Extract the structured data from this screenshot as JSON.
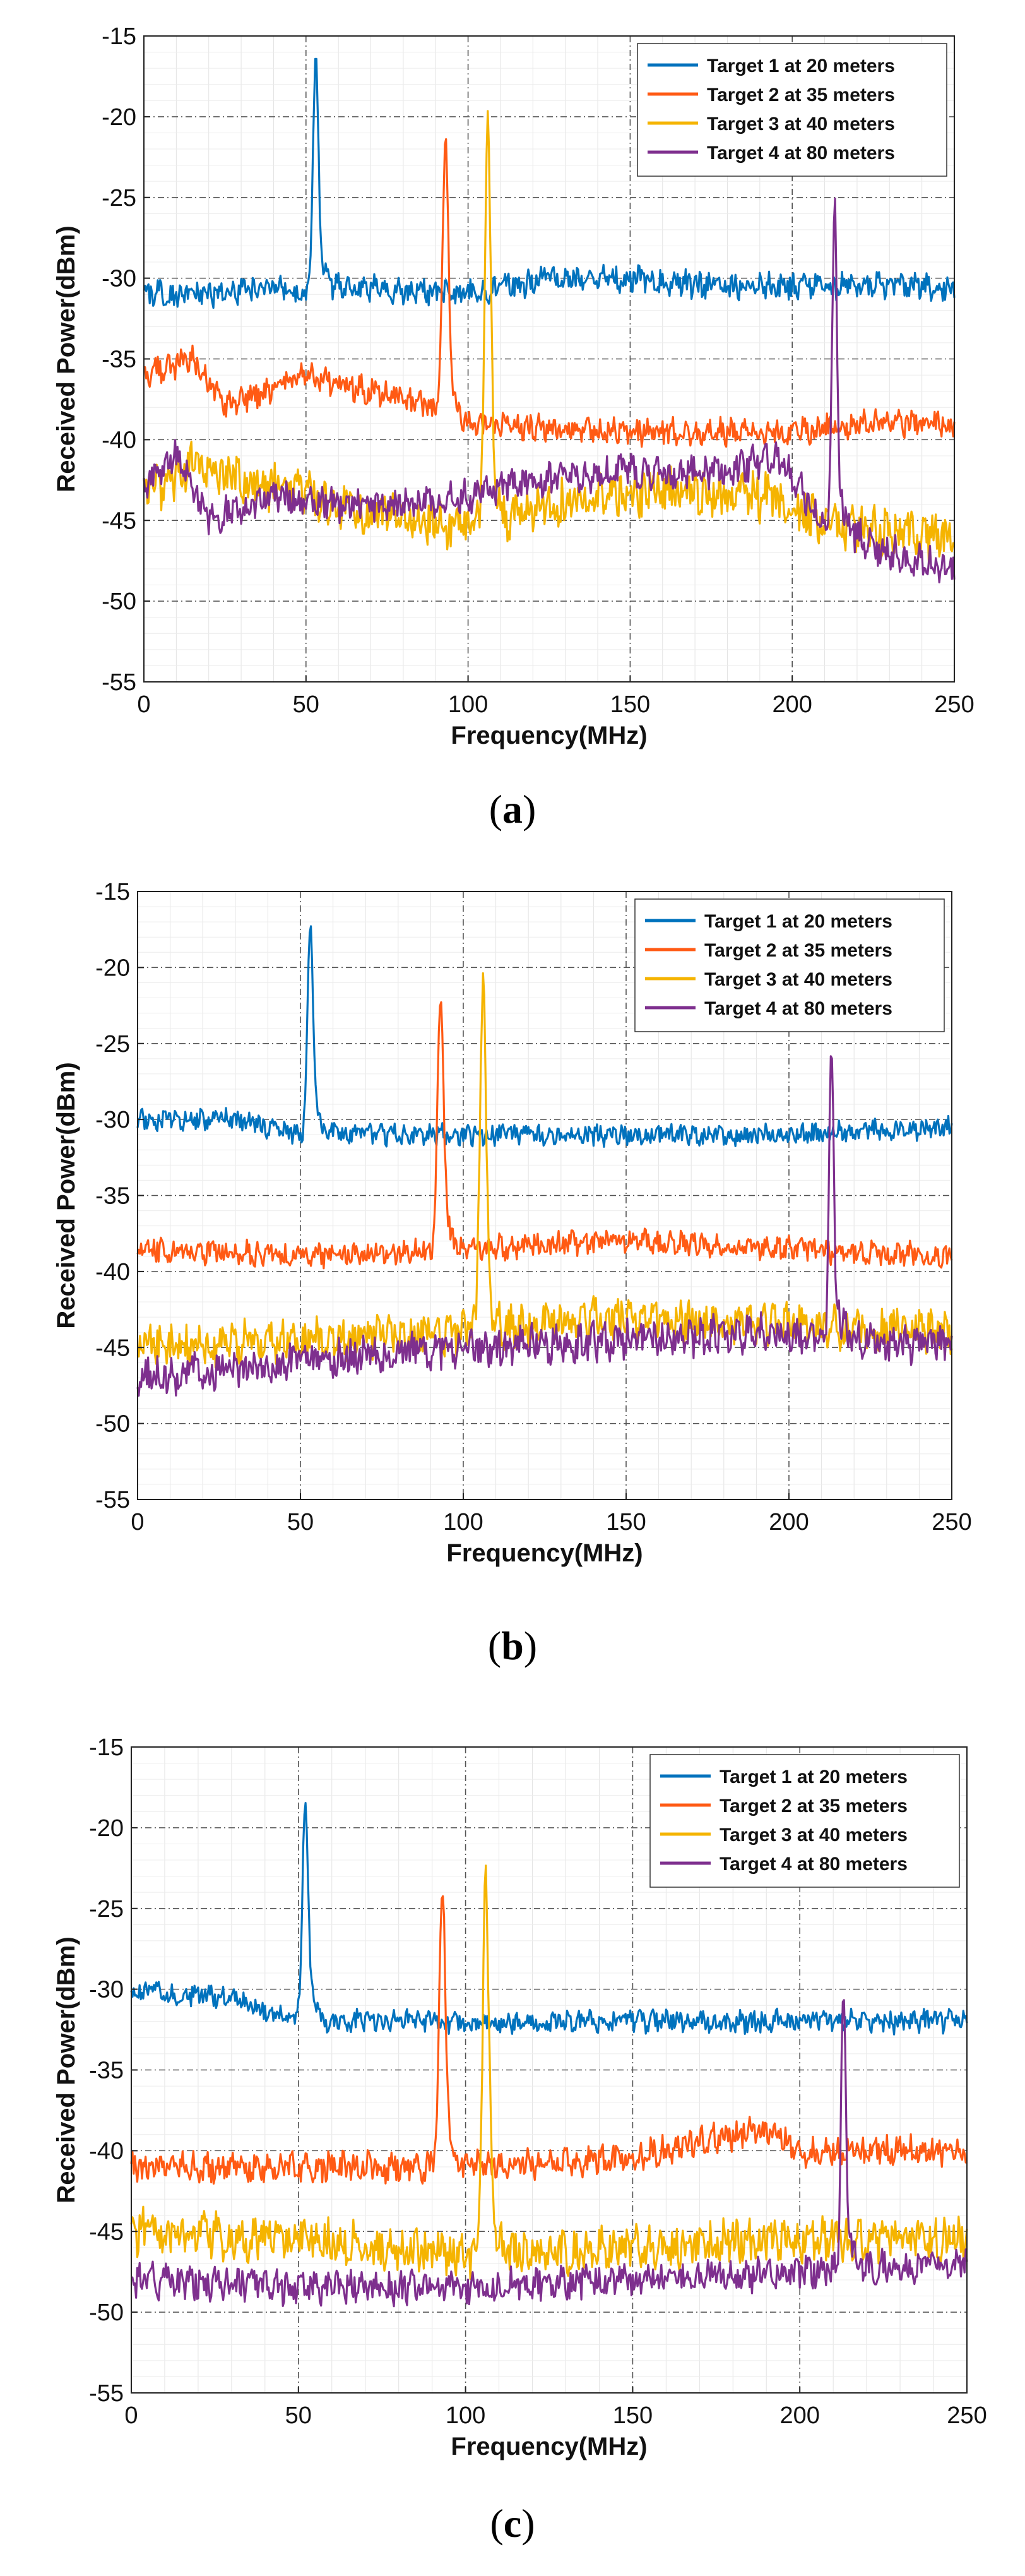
{
  "colors": {
    "s1": "#0072BD",
    "s2": "#FF5A14",
    "s3": "#F5B400",
    "s4": "#7E2F8E"
  },
  "chart_data": [
    {
      "type": "line",
      "panel_label": "a",
      "xlabel": "Frequency(MHz)",
      "ylabel": "Received Power(dBm)",
      "xlim": [
        0,
        250
      ],
      "ylim": [
        -55,
        -15
      ],
      "xticks": [
        "0",
        "50",
        "100",
        "150",
        "200",
        "250"
      ],
      "yticks": [
        "-15",
        "-20",
        "-25",
        "-30",
        "-35",
        "-40",
        "-45",
        "-50",
        "-55"
      ],
      "grid": true,
      "legend_position": "top-right",
      "series": [
        {
          "name": "Target 1 at 20 meters",
          "color": "#0072BD",
          "base": [
            [
              0,
              -31
            ],
            [
              20,
              -31
            ],
            [
              40,
              -30.5
            ],
            [
              50,
              -31
            ],
            [
              60,
              -30.5
            ],
            [
              100,
              -31
            ],
            [
              125,
              -30
            ],
            [
              150,
              -30
            ],
            [
              175,
              -30.5
            ],
            [
              200,
              -30.5
            ],
            [
              225,
              -30.5
            ],
            [
              250,
              -30.5
            ]
          ],
          "noise": 0.7,
          "peak": [
            53,
            -17,
            1.2
          ]
        },
        {
          "name": "Target 2 at 35 meters",
          "color": "#FF5A14",
          "base": [
            [
              0,
              -36
            ],
            [
              15,
              -35
            ],
            [
              25,
              -38
            ],
            [
              50,
              -36
            ],
            [
              80,
              -37.5
            ],
            [
              100,
              -39
            ],
            [
              150,
              -39.5
            ],
            [
              200,
              -39.5
            ],
            [
              225,
              -39
            ],
            [
              250,
              -39
            ]
          ],
          "noise": 0.7,
          "peak": [
            93,
            -22,
            1.3
          ]
        },
        {
          "name": "Target 3 at 40 meters",
          "color": "#F5B400",
          "base": [
            [
              0,
              -43.5
            ],
            [
              15,
              -41.5
            ],
            [
              40,
              -43
            ],
            [
              60,
              -44
            ],
            [
              80,
              -45
            ],
            [
              100,
              -45.5
            ],
            [
              130,
              -44
            ],
            [
              160,
              -43
            ],
            [
              190,
              -43.5
            ],
            [
              210,
              -45
            ],
            [
              230,
              -46
            ],
            [
              250,
              -46
            ]
          ],
          "noise": 1.3,
          "peak": [
            106,
            -21.5,
            1.3
          ]
        },
        {
          "name": "Target 4 at 80 meters",
          "color": "#7E2F8E",
          "base": [
            [
              0,
              -43
            ],
            [
              10,
              -41
            ],
            [
              20,
              -45
            ],
            [
              40,
              -43.5
            ],
            [
              60,
              -44
            ],
            [
              80,
              -44
            ],
            [
              100,
              -43.5
            ],
            [
              120,
              -42.5
            ],
            [
              150,
              -42
            ],
            [
              180,
              -42
            ],
            [
              195,
              -41
            ],
            [
              210,
              -45
            ],
            [
              230,
              -47
            ],
            [
              250,
              -48
            ]
          ],
          "noise": 0.9,
          "peak": [
            213,
            -26,
            1.0
          ]
        }
      ]
    },
    {
      "type": "line",
      "panel_label": "b",
      "xlabel": "Frequency(MHz)",
      "ylabel": "Received Power(dBm)",
      "xlim": [
        0,
        250
      ],
      "ylim": [
        -55,
        -15
      ],
      "xticks": [
        "0",
        "50",
        "100",
        "150",
        "200",
        "250"
      ],
      "yticks": [
        "-15",
        "-20",
        "-25",
        "-30",
        "-35",
        "-40",
        "-45",
        "-50",
        "-55"
      ],
      "grid": true,
      "legend_position": "top-right",
      "series": [
        {
          "name": "Target 1 at 20 meters",
          "color": "#0072BD",
          "base": [
            [
              0,
              -30
            ],
            [
              30,
              -30
            ],
            [
              50,
              -31
            ],
            [
              100,
              -31
            ],
            [
              150,
              -31
            ],
            [
              200,
              -31
            ],
            [
              250,
              -30.5
            ]
          ],
          "noise": 0.6,
          "peak": [
            53,
            -17.2,
            1.2
          ]
        },
        {
          "name": "Target 2 at 35 meters",
          "color": "#FF5A14",
          "base": [
            [
              0,
              -38.5
            ],
            [
              50,
              -39
            ],
            [
              100,
              -38.5
            ],
            [
              150,
              -38
            ],
            [
              200,
              -38.5
            ],
            [
              250,
              -39
            ]
          ],
          "noise": 0.7,
          "peak": [
            93,
            -22.5,
            1.3
          ]
        },
        {
          "name": "Target 3 at 40 meters",
          "color": "#F5B400",
          "base": [
            [
              0,
              -45
            ],
            [
              50,
              -44.5
            ],
            [
              100,
              -44
            ],
            [
              150,
              -43
            ],
            [
              200,
              -43.5
            ],
            [
              250,
              -44
            ]
          ],
          "noise": 1.2,
          "peak": [
            106,
            -21.8,
            1.3
          ]
        },
        {
          "name": "Target 4 at 80 meters",
          "color": "#7E2F8E",
          "base": [
            [
              0,
              -47
            ],
            [
              50,
              -46
            ],
            [
              100,
              -45
            ],
            [
              150,
              -44.5
            ],
            [
              200,
              -44
            ],
            [
              250,
              -45
            ]
          ],
          "noise": 1.1,
          "peak": [
            213,
            -26.5,
            1.0
          ]
        }
      ]
    },
    {
      "type": "line",
      "panel_label": "c",
      "xlabel": "Frequency(MHz)",
      "ylabel": "Received Power(dBm)",
      "xlim": [
        0,
        250
      ],
      "ylim": [
        -55,
        -15
      ],
      "xticks": [
        "0",
        "50",
        "100",
        "150",
        "200",
        "250"
      ],
      "yticks": [
        "-15",
        "-20",
        "-25",
        "-30",
        "-35",
        "-40",
        "-45",
        "-50",
        "-55"
      ],
      "grid": true,
      "legend_position": "top-right",
      "series": [
        {
          "name": "Target 1 at 20 meters",
          "color": "#0072BD",
          "base": [
            [
              0,
              -30
            ],
            [
              30,
              -30.5
            ],
            [
              50,
              -32
            ],
            [
              100,
              -32
            ],
            [
              150,
              -32
            ],
            [
              200,
              -32
            ],
            [
              250,
              -32
            ]
          ],
          "noise": 0.6,
          "peak": [
            52,
            -18.3,
            1.2
          ]
        },
        {
          "name": "Target 2 at 35 meters",
          "color": "#FF5A14",
          "base": [
            [
              0,
              -41
            ],
            [
              50,
              -41
            ],
            [
              100,
              -41
            ],
            [
              150,
              -40.5
            ],
            [
              190,
              -38.5
            ],
            [
              200,
              -40
            ],
            [
              250,
              -40
            ]
          ],
          "noise": 0.8,
          "peak": [
            93,
            -24,
            1.3
          ]
        },
        {
          "name": "Target 3 at 40 meters",
          "color": "#F5B400",
          "base": [
            [
              0,
              -45
            ],
            [
              50,
              -45.5
            ],
            [
              100,
              -46.5
            ],
            [
              150,
              -46
            ],
            [
              200,
              -45.5
            ],
            [
              250,
              -45.5
            ]
          ],
          "noise": 1.2,
          "peak": [
            106,
            -23.5,
            1.3
          ]
        },
        {
          "name": "Target 4 at 80 meters",
          "color": "#7E2F8E",
          "base": [
            [
              0,
              -48
            ],
            [
              50,
              -48.5
            ],
            [
              100,
              -48.5
            ],
            [
              150,
              -48
            ],
            [
              200,
              -47.5
            ],
            [
              250,
              -47
            ]
          ],
          "noise": 0.9,
          "peak": [
            213,
            -30.5,
            1.0
          ]
        }
      ]
    }
  ]
}
